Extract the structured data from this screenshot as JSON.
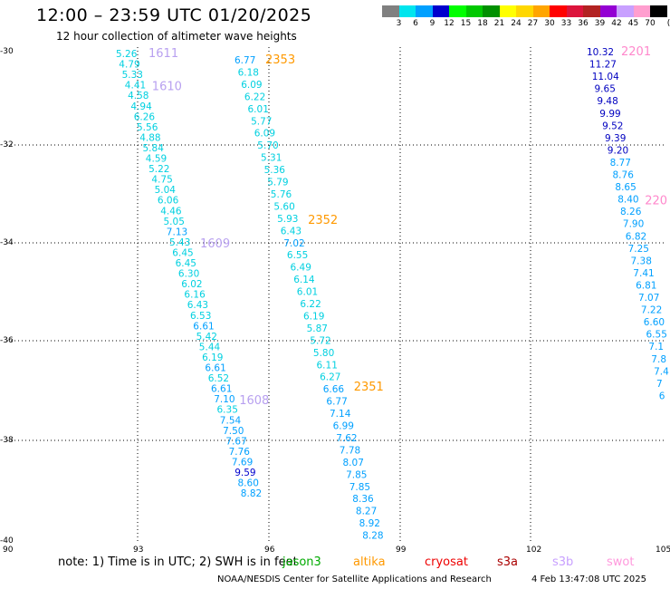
{
  "header": {
    "title": "12:00 – 23:59 UTC 01/20/2025",
    "subtitle": "12 hour collection of altimeter wave heights"
  },
  "colorbar": {
    "labels": [
      "3",
      "6",
      "9",
      "12",
      "15",
      "18",
      "21",
      "24",
      "27",
      "30",
      "33",
      "36",
      "39",
      "42",
      "45",
      "70"
    ],
    "unit": "(ft)",
    "colors": [
      "#808080",
      "#00e5ee",
      "#00a0ff",
      "#0000cd",
      "#00ff00",
      "#00c800",
      "#009000",
      "#ffff00",
      "#ffd700",
      "#ffa500",
      "#ff0000",
      "#dc143c",
      "#b22222",
      "#9400d3",
      "#c8a0ff",
      "#ff9ecf",
      "#000000"
    ]
  },
  "map": {
    "lat_labels": [
      "-30",
      "-32",
      "-34",
      "-36",
      "-38",
      "-40"
    ],
    "lon_labels": [
      "90",
      "93",
      "96",
      "99",
      "102",
      "105"
    ]
  },
  "tracks": [
    {
      "color": "#00d0e0",
      "values": [
        "5.26",
        "4.79",
        "5.33",
        "4.41",
        "4.58",
        "4.94",
        "6.26",
        "5.56",
        "4.88",
        "5.84",
        "4.59",
        "5.22",
        "4.75",
        "5.04",
        "6.06",
        "4.46",
        "5.05",
        "7.13",
        "5.43",
        "6.45",
        "6.45",
        "6.30",
        "6.02",
        "6.16",
        "6.43",
        "6.53",
        "6.61",
        "5.42",
        "5.44",
        "6.19",
        "6.61",
        "6.52",
        "6.61",
        "7.10",
        "6.35",
        "7.54",
        "7.50",
        "7.67",
        "7.76",
        "7.69",
        "9.59",
        "8.60",
        "8.82"
      ],
      "time_labels": [
        {
          "text": "1611",
          "color": "#b8a0f0",
          "index": 0
        },
        {
          "text": "1610",
          "color": "#b8a0f0",
          "index": 3
        },
        {
          "text": "1609",
          "color": "#b8a0f0",
          "index": 18
        },
        {
          "text": "1608",
          "color": "#b8a0f0",
          "index": 33
        }
      ]
    },
    {
      "color": "#00d0e0",
      "values": [
        "6.77",
        "6.18",
        "6.09",
        "6.22",
        "6.01",
        "5.77",
        "6.09",
        "5.70",
        "5.31",
        "5.36",
        "5.79",
        "5.76",
        "5.60",
        "5.93",
        "6.43",
        "7.02",
        "6.55",
        "6.49",
        "6.14",
        "6.01",
        "6.22",
        "6.19",
        "5.87",
        "5.72",
        "5.80",
        "6.11",
        "6.27",
        "6.66",
        "6.77",
        "7.14",
        "6.99",
        "7.62",
        "7.78",
        "8.07",
        "7.85",
        "7.85",
        "8.36",
        "8.27",
        "8.92",
        "8.28"
      ],
      "time_labels": [
        {
          "text": "2353",
          "color": "#ff9900",
          "index": 0
        },
        {
          "text": "2352",
          "color": "#ff9900",
          "index": 13
        },
        {
          "text": "2351",
          "color": "#ff9900",
          "index": 27
        }
      ]
    },
    {
      "color": "#0000c0",
      "values": [
        "10.32",
        "11.27",
        "11.04",
        "9.65",
        "9.48",
        "9.99",
        "9.52",
        "9.39",
        "9.20",
        "8.77",
        "8.76",
        "8.65",
        "8.40",
        "8.26",
        "7.90",
        "6.82",
        "7.25",
        "7.38",
        "7.41",
        "6.81",
        "7.07",
        "7.22",
        "6.60",
        "6.55",
        "7.1",
        "7.8",
        "7.4",
        "7",
        "6"
      ],
      "time_labels": [
        {
          "text": "2201",
          "color": "#ff88cc",
          "index": 0
        },
        {
          "text": "220",
          "color": "#ff88cc",
          "index": 12
        }
      ]
    }
  ],
  "footer": {
    "note": "note: 1) Time is in UTC; 2) SWH is in feet",
    "satellites": [
      {
        "name": "jason3",
        "color": "#00aa00"
      },
      {
        "name": "altika",
        "color": "#ff9900"
      },
      {
        "name": "cryosat",
        "color": "#ee0000"
      },
      {
        "name": "s3a",
        "color": "#aa0000"
      },
      {
        "name": "s3b",
        "color": "#c8a0ff"
      },
      {
        "name": "swot",
        "color": "#ff99dd"
      }
    ],
    "credit": "NOAA/NESDIS Center for Satellite Applications and Research",
    "timestamp": "4 Feb 13:47:08 UTC 2025"
  }
}
